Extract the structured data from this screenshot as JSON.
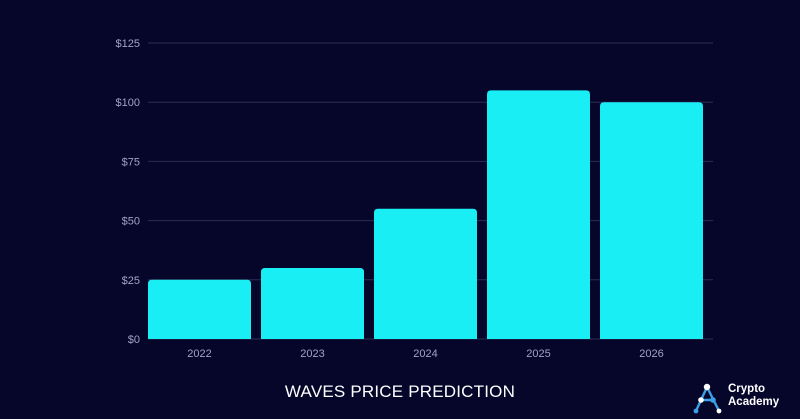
{
  "chart_data": {
    "type": "bar",
    "title": "WAVES PRICE PREDICTION",
    "categories": [
      "2022",
      "2023",
      "2024",
      "2025",
      "2026"
    ],
    "values": [
      25,
      30,
      55,
      105,
      100
    ],
    "ylim": [
      0,
      125
    ],
    "yticks": [
      0,
      25,
      50,
      75,
      100,
      125
    ],
    "ytick_labels": [
      "$0",
      "$25",
      "$50",
      "$75",
      "$100",
      "$125"
    ],
    "xlabel": "",
    "ylabel": "",
    "grid": true,
    "colors": {
      "background": "#06062b",
      "bar": "#1aeef5",
      "grid": "#2a2d52",
      "tick_text": "#9fa3c4",
      "title_text": "#ffffff"
    }
  },
  "logo": {
    "line1": "Crypto",
    "line2": "Academy"
  }
}
